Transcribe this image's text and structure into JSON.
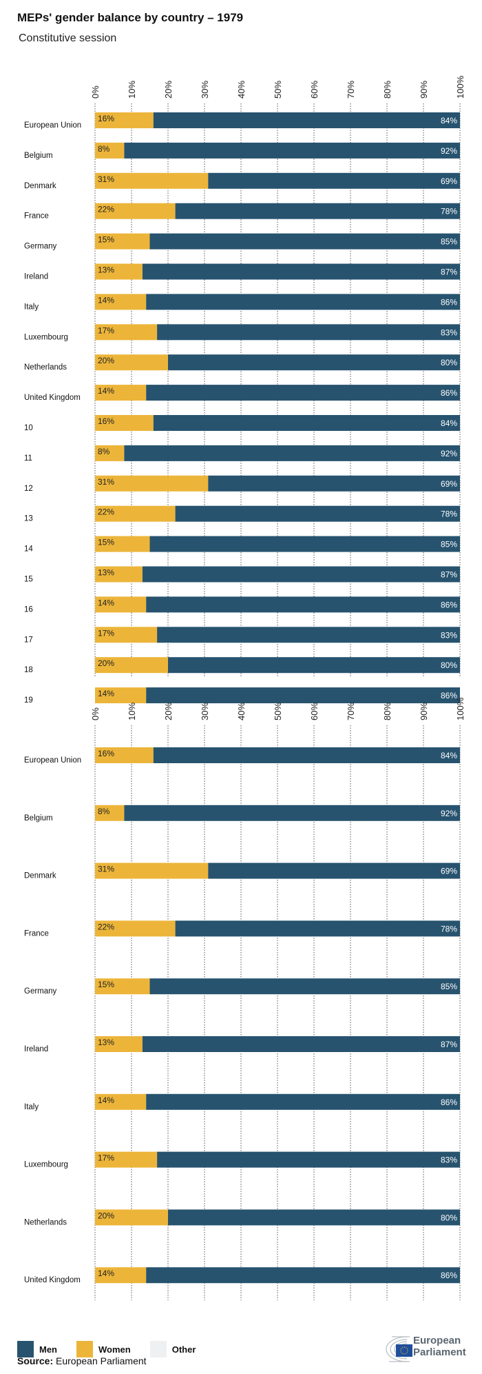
{
  "colors": {
    "men": "#27536f",
    "women": "#ecb53a",
    "other": "#eef0f1",
    "grid": "#555555"
  },
  "chart_data": [
    {
      "type": "bar",
      "orientation": "horizontal",
      "stacked": true,
      "title": "MEPs' gender balance by country – 1979",
      "subtitle": "Constitutive session",
      "xlim": [
        0,
        100
      ],
      "x_ticks": [
        "0%",
        "10%",
        "20%",
        "30%",
        "40%",
        "50%",
        "60%",
        "70%",
        "80%",
        "90%",
        "100%"
      ],
      "grid": true,
      "categories": [
        "European Union",
        "Belgium",
        "Denmark",
        "France",
        "Germany",
        "Ireland",
        "Italy",
        "Luxembourg",
        "Netherlands",
        "United Kingdom",
        "10",
        "11",
        "12",
        "13",
        "14",
        "15",
        "16",
        "17",
        "18",
        "19"
      ],
      "series": [
        {
          "name": "Women",
          "values": [
            16,
            8,
            31,
            22,
            15,
            13,
            14,
            17,
            20,
            14,
            16,
            8,
            31,
            22,
            15,
            13,
            14,
            17,
            20,
            14
          ]
        },
        {
          "name": "Men",
          "values": [
            84,
            92,
            69,
            78,
            85,
            87,
            86,
            83,
            80,
            86,
            84,
            92,
            69,
            78,
            85,
            87,
            86,
            83,
            80,
            86
          ]
        }
      ]
    },
    {
      "type": "bar",
      "orientation": "horizontal",
      "stacked": true,
      "xlim": [
        0,
        100
      ],
      "x_ticks": [
        "0%",
        "10%",
        "20%",
        "30%",
        "40%",
        "50%",
        "60%",
        "70%",
        "80%",
        "90%",
        "100%"
      ],
      "grid": true,
      "categories": [
        "European Union",
        "Belgium",
        "Denmark",
        "France",
        "Germany",
        "Ireland",
        "Italy",
        "Luxembourg",
        "Netherlands",
        "United Kingdom"
      ],
      "series": [
        {
          "name": "Women",
          "values": [
            16,
            8,
            31,
            22,
            15,
            13,
            14,
            17,
            20,
            14
          ]
        },
        {
          "name": "Men",
          "values": [
            84,
            92,
            69,
            78,
            85,
            87,
            86,
            83,
            80,
            86
          ]
        }
      ]
    }
  ],
  "legend": {
    "men": "Men",
    "women": "Women",
    "other": "Other",
    "position": "bottom-left"
  },
  "source": {
    "label": "Source:",
    "text": "European Parliament"
  },
  "logo": {
    "line1": "European",
    "line2": "Parliament"
  }
}
